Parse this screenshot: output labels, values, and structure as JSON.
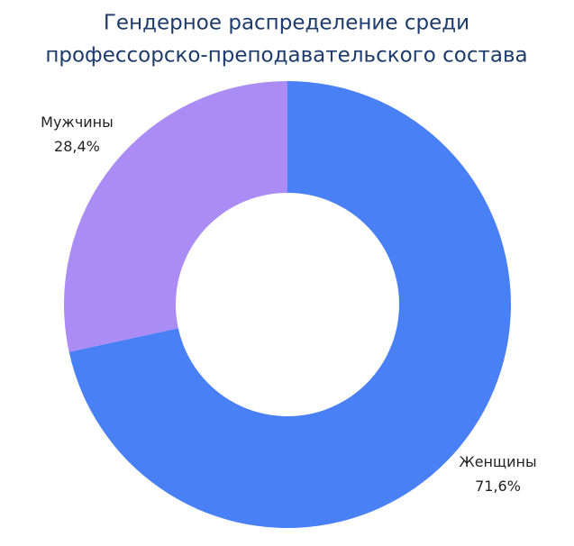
{
  "chart_data": {
    "type": "donut",
    "title": [
      "Гендерное распределение среди",
      "профессорско-преподавательского состава"
    ],
    "categories": [
      "Женщины",
      "Мужчины"
    ],
    "values": [
      71.6,
      28.4
    ],
    "value_labels": [
      "71,6%",
      "28,4%"
    ],
    "colors": [
      "#4a80f6",
      "#ab8cf4"
    ]
  }
}
